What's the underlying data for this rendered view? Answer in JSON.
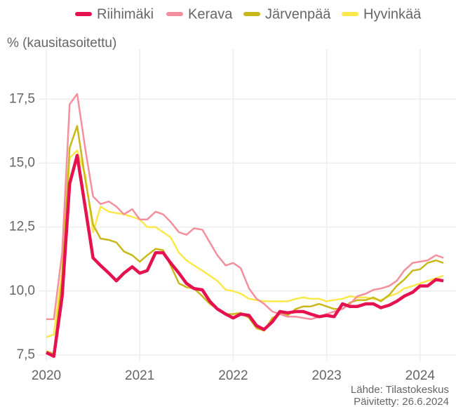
{
  "chart_data": {
    "type": "line",
    "y_label": "% (kausitasoitettu)",
    "source": "Lähde: Tilastokeskus",
    "updated": "Päivitetty: 26.6.2024",
    "x": [
      2020.0,
      2020.08,
      2020.17,
      2020.25,
      2020.33,
      2020.42,
      2020.5,
      2020.58,
      2020.67,
      2020.75,
      2020.83,
      2020.92,
      2021.0,
      2021.08,
      2021.17,
      2021.25,
      2021.33,
      2021.42,
      2021.5,
      2021.58,
      2021.67,
      2021.75,
      2021.83,
      2021.92,
      2022.0,
      2022.08,
      2022.17,
      2022.25,
      2022.33,
      2022.42,
      2022.5,
      2022.58,
      2022.67,
      2022.75,
      2022.83,
      2022.92,
      2023.0,
      2023.08,
      2023.17,
      2023.25,
      2023.33,
      2023.42,
      2023.5,
      2023.58,
      2023.67,
      2023.75,
      2023.83,
      2023.92,
      2024.0,
      2024.08,
      2024.17,
      2024.25
    ],
    "series": [
      {
        "name": "Riihimäki",
        "color": "#e5124f",
        "values": [
          7.6,
          7.45,
          9.8,
          14.2,
          15.3,
          13.2,
          11.3,
          11.0,
          10.7,
          10.4,
          10.7,
          10.95,
          10.7,
          10.8,
          11.5,
          11.5,
          11.1,
          10.7,
          10.3,
          10.1,
          10.05,
          9.6,
          9.3,
          9.1,
          8.95,
          9.1,
          9.05,
          8.65,
          8.5,
          8.8,
          9.2,
          9.15,
          9.2,
          9.2,
          9.1,
          9.0,
          9.05,
          9.0,
          9.5,
          9.4,
          9.4,
          9.5,
          9.5,
          9.35,
          9.45,
          9.6,
          9.8,
          9.95,
          10.2,
          10.2,
          10.45,
          10.4
        ]
      },
      {
        "name": "Kerava",
        "color": "#f4909e",
        "values": [
          8.9,
          8.9,
          11.5,
          17.3,
          17.7,
          15.5,
          13.7,
          13.4,
          13.5,
          13.3,
          13.0,
          13.2,
          12.8,
          12.8,
          13.1,
          13.0,
          12.7,
          12.3,
          12.2,
          12.45,
          12.4,
          11.9,
          11.4,
          11.0,
          11.1,
          10.9,
          10.1,
          9.7,
          9.5,
          9.2,
          9.1,
          9.0,
          9.0,
          8.95,
          8.9,
          9.0,
          9.1,
          9.2,
          9.3,
          9.5,
          9.8,
          9.9,
          10.05,
          10.1,
          10.2,
          10.4,
          10.8,
          11.1,
          11.15,
          11.2,
          11.4,
          11.3
        ]
      },
      {
        "name": "Järvenpää",
        "color": "#c9b81a",
        "values": [
          7.65,
          7.55,
          10.5,
          15.6,
          16.45,
          14.3,
          12.6,
          12.05,
          12.0,
          11.9,
          11.55,
          11.4,
          11.15,
          11.4,
          11.65,
          11.6,
          11.0,
          10.3,
          10.15,
          10.1,
          9.8,
          9.5,
          9.3,
          9.1,
          9.1,
          9.15,
          8.95,
          8.55,
          8.45,
          8.95,
          9.1,
          9.05,
          9.3,
          9.4,
          9.4,
          9.5,
          9.4,
          9.3,
          9.3,
          9.55,
          9.65,
          9.65,
          9.75,
          9.6,
          9.85,
          10.2,
          10.45,
          10.8,
          10.85,
          11.1,
          11.2,
          11.1
        ]
      },
      {
        "name": "Hyvinkää",
        "color": "#fbe84a",
        "values": [
          8.2,
          8.3,
          10.8,
          15.2,
          15.5,
          14.5,
          12.3,
          13.3,
          13.1,
          13.05,
          13.0,
          12.9,
          12.8,
          12.5,
          12.5,
          12.3,
          12.1,
          11.5,
          11.2,
          11.0,
          10.8,
          10.6,
          10.4,
          10.05,
          10.0,
          9.9,
          9.7,
          9.65,
          9.6,
          9.6,
          9.6,
          9.6,
          9.7,
          9.75,
          9.7,
          9.7,
          9.6,
          9.65,
          9.7,
          9.8,
          9.75,
          9.75,
          9.7,
          9.65,
          9.8,
          9.9,
          10.1,
          10.2,
          10.3,
          10.4,
          10.5,
          10.6
        ]
      }
    ],
    "xlim": [
      1919.92,
      2024.4
    ],
    "xticks": [
      2020,
      2021,
      2022,
      2023,
      2024
    ],
    "ylim": [
      7.3,
      19.5
    ],
    "yticks": [
      {
        "value": 7.5,
        "label": "7,5"
      },
      {
        "value": 10,
        "label": "10,0"
      },
      {
        "value": 12.5,
        "label": "12,5"
      },
      {
        "value": 15,
        "label": "15,0"
      },
      {
        "value": 17.5,
        "label": "17,5"
      }
    ],
    "grid": true
  }
}
